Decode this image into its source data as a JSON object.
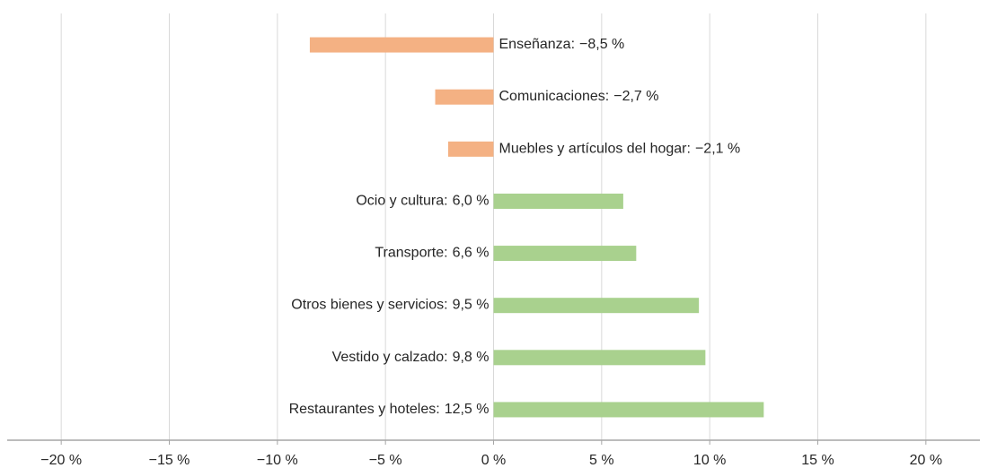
{
  "chart_data": {
    "type": "bar",
    "orientation": "horizontal",
    "categories": [
      "Enseñanza:",
      "Comunicaciones:",
      "Muebles y artículos del hogar:",
      "Ocio y cultura:",
      "Transporte:",
      "Otros bienes y servicios:",
      "Vestido y calzado:",
      "Restaurantes y hoteles:"
    ],
    "values": [
      -8.5,
      -2.7,
      -2.1,
      6.0,
      6.6,
      9.5,
      9.8,
      12.5
    ],
    "value_labels": [
      "−8,5 %",
      "−2,7 %",
      "−2,1 %",
      "6,0 %",
      "6,6 %",
      "9,5 %",
      "9,8 %",
      "12,5 %"
    ],
    "colors": [
      "#f4b183",
      "#f4b183",
      "#f4b183",
      "#a9d18e",
      "#a9d18e",
      "#a9d18e",
      "#a9d18e",
      "#a9d18e"
    ],
    "xlim": [
      -22.5,
      22.5
    ],
    "xticks": [
      {
        "value": -20,
        "label": "−20 %"
      },
      {
        "value": -15,
        "label": "−15 %"
      },
      {
        "value": -10,
        "label": "−10 %"
      },
      {
        "value": -5,
        "label": "−5 %"
      },
      {
        "value": 0,
        "label": "0 %"
      },
      {
        "value": 5,
        "label": "5 %"
      },
      {
        "value": 10,
        "label": "10 %"
      },
      {
        "value": 15,
        "label": "15 %"
      },
      {
        "value": 20,
        "label": "20 %"
      }
    ],
    "grid": true
  }
}
